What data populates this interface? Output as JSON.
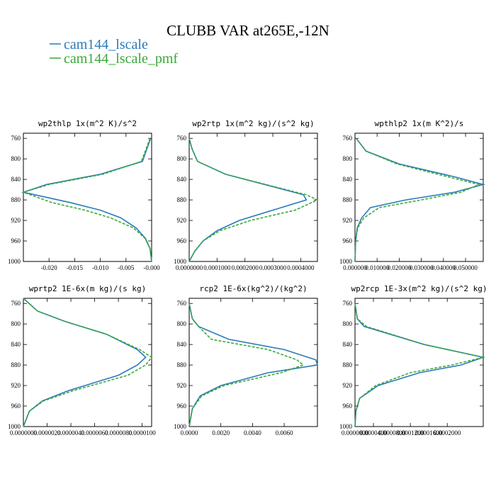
{
  "figure_title": "CLUBB VAR at265E,-12N",
  "legend": [
    {
      "label": "cam144_lscale",
      "color": "#2a7ab8",
      "dash": "solid"
    },
    {
      "label": "cam144_lscale_pmf",
      "color": "#3aa83a",
      "dash": "dashed"
    }
  ],
  "chart_data": [
    {
      "type": "line",
      "title": "wp2thlp  1x(m^2 K)/s^2",
      "xlim": [
        -0.025,
        0.0
      ],
      "ylim": [
        1000,
        750
      ],
      "yticks": [
        760,
        800,
        840,
        880,
        920,
        960,
        1000
      ],
      "xticks": [
        -0.02,
        -0.015,
        -0.01,
        -0.005,
        0.0
      ],
      "xtick_labels": [
        "-0.020",
        "-0.015",
        "-0.010",
        "-0.005",
        "-0.000"
      ],
      "y": [
        760,
        805,
        830,
        850,
        865,
        885,
        900,
        915,
        935,
        955,
        975,
        1000
      ],
      "series": [
        {
          "name": "cam144_lscale",
          "values": [
            -0.0002,
            -0.0018,
            -0.01,
            -0.0205,
            -0.025,
            -0.016,
            -0.01,
            -0.006,
            -0.003,
            -0.0012,
            -0.0003,
            0.0
          ]
        },
        {
          "name": "cam144_lscale_pmf",
          "values": [
            -0.0003,
            -0.002,
            -0.0095,
            -0.02,
            -0.025,
            -0.0195,
            -0.013,
            -0.008,
            -0.0035,
            -0.0013,
            -0.0003,
            0.0
          ]
        }
      ]
    },
    {
      "type": "line",
      "title": "wp2rtp  1x(m^2 kg)/(s^2 kg)",
      "xlim": [
        0.0,
        0.00046
      ],
      "ylim": [
        1000,
        750
      ],
      "yticks": [
        760,
        800,
        840,
        880,
        920,
        960,
        1000
      ],
      "xticks": [
        0.0,
        0.0001,
        0.0002,
        0.0003,
        0.0004
      ],
      "xtick_labels": [
        "0.0000000",
        "0.0001000",
        "0.0002000",
        "0.0003000",
        "0.0004000"
      ],
      "y": [
        760,
        780,
        805,
        830,
        870,
        880,
        900,
        920,
        940,
        960,
        980,
        1000
      ],
      "series": [
        {
          "name": "cam144_lscale",
          "values": [
            0.0,
            1e-05,
            3e-05,
            0.00013,
            0.00041,
            0.00042,
            0.0003,
            0.00018,
            0.0001,
            5e-05,
            2e-05,
            0.0
          ]
        },
        {
          "name": "cam144_lscale_pmf",
          "values": [
            0.0,
            1e-05,
            3e-05,
            0.00013,
            0.00042,
            0.00046,
            0.00038,
            0.00022,
            0.00011,
            5e-05,
            2e-05,
            0.0
          ]
        }
      ]
    },
    {
      "type": "line",
      "title": "wpthlp2  1x(m K^2)/s",
      "xlim": [
        0.0,
        0.058
      ],
      "ylim": [
        1000,
        750
      ],
      "yticks": [
        760,
        800,
        840,
        880,
        920,
        960,
        1000
      ],
      "xticks": [
        0.0,
        0.01,
        0.02,
        0.03,
        0.04,
        0.05
      ],
      "xtick_labels": [
        "0.000000",
        "0.010000",
        "0.020000",
        "0.030000",
        "0.040000",
        "0.050000"
      ],
      "y": [
        760,
        785,
        810,
        835,
        850,
        865,
        880,
        895,
        915,
        935,
        960,
        1000
      ],
      "series": [
        {
          "name": "cam144_lscale",
          "values": [
            0.0005,
            0.005,
            0.02,
            0.045,
            0.058,
            0.045,
            0.023,
            0.007,
            0.003,
            0.001,
            0.0003,
            0.0
          ]
        },
        {
          "name": "cam144_lscale_pmf",
          "values": [
            0.0005,
            0.005,
            0.019,
            0.042,
            0.056,
            0.048,
            0.03,
            0.011,
            0.004,
            0.0012,
            0.0003,
            0.0
          ]
        }
      ]
    },
    {
      "type": "line",
      "title": "wprtp2  1E-6x(m kg)/(s kg)",
      "xlim": [
        0.0,
        1.08e-05
      ],
      "ylim": [
        1000,
        750
      ],
      "yticks": [
        760,
        800,
        840,
        880,
        920,
        960,
        1000
      ],
      "xticks": [
        0.0,
        2e-06,
        4e-06,
        6e-06,
        8e-06,
        1e-05
      ],
      "xtick_labels": [
        "0.0000000",
        "0.0000020",
        "0.0000040",
        "0.0000060",
        "0.0000080",
        "0.0000100"
      ],
      "y": [
        750,
        775,
        795,
        820,
        850,
        865,
        880,
        900,
        930,
        950,
        970,
        1000
      ],
      "series": [
        {
          "name": "cam144_lscale",
          "values": [
            0.0,
            1.2e-06,
            3.5e-06,
            7e-06,
            9.6e-06,
            1.03e-05,
            9.6e-06,
            8e-06,
            3.8e-06,
            1.6e-06,
            5e-07,
            0.0
          ]
        },
        {
          "name": "cam144_lscale_pmf",
          "values": [
            0.0,
            1.2e-06,
            3.5e-06,
            7e-06,
            9.8e-06,
            1.08e-05,
            1.03e-05,
            8.8e-06,
            4.2e-06,
            1.7e-06,
            5e-07,
            0.0
          ]
        }
      ]
    },
    {
      "type": "line",
      "title": "rcp2  1E-6x(kg^2)/(kg^2)",
      "xlim": [
        0.0,
        0.0081
      ],
      "ylim": [
        1000,
        750
      ],
      "yticks": [
        760,
        800,
        840,
        880,
        920,
        960,
        1000
      ],
      "xticks": [
        0.0,
        0.002,
        0.004,
        0.006
      ],
      "xtick_labels": [
        "0.0000",
        "0.0020",
        "0.0040",
        "0.0060"
      ],
      "y": [
        760,
        790,
        805,
        830,
        850,
        870,
        880,
        895,
        920,
        940,
        965,
        1000
      ],
      "series": [
        {
          "name": "cam144_lscale",
          "values": [
            0.0,
            0.0002,
            0.0006,
            0.0025,
            0.006,
            0.008,
            0.0081,
            0.005,
            0.002,
            0.0007,
            0.0002,
            0.0
          ]
        },
        {
          "name": "cam144_lscale_pmf",
          "values": [
            0.0,
            0.0002,
            0.0006,
            0.0014,
            0.005,
            0.0068,
            0.0072,
            0.0058,
            0.0022,
            0.0008,
            0.0002,
            0.0
          ]
        }
      ]
    },
    {
      "type": "line",
      "title": "wp2rcp  1E-3x(m^2 kg)/(s^2 kg)",
      "xlim": [
        0.0,
        0.000278
      ],
      "ylim": [
        1000,
        750
      ],
      "yticks": [
        760,
        800,
        840,
        880,
        920,
        960,
        1000
      ],
      "xticks": [
        0.0,
        4e-05,
        8e-05,
        0.00012,
        0.00016,
        0.0002
      ],
      "xtick_labels": [
        "0.0000000",
        "0.0000400",
        "0.0000800",
        "0.0001200",
        "0.0001600",
        "0.0002000"
      ],
      "y": [
        760,
        790,
        805,
        840,
        865,
        880,
        895,
        920,
        945,
        970,
        1000
      ],
      "series": [
        {
          "name": "cam144_lscale",
          "values": [
            0.0,
            5e-06,
            2e-05,
            0.00015,
            0.000278,
            0.00023,
            0.00014,
            5e-05,
            1e-05,
            2e-06,
            0.0
          ]
        },
        {
          "name": "cam144_lscale_pmf",
          "values": [
            0.0,
            5e-06,
            2.5e-05,
            0.00015,
            0.000278,
            0.00021,
            0.00012,
            4.5e-05,
            1e-05,
            2e-06,
            0.0
          ]
        }
      ]
    }
  ]
}
